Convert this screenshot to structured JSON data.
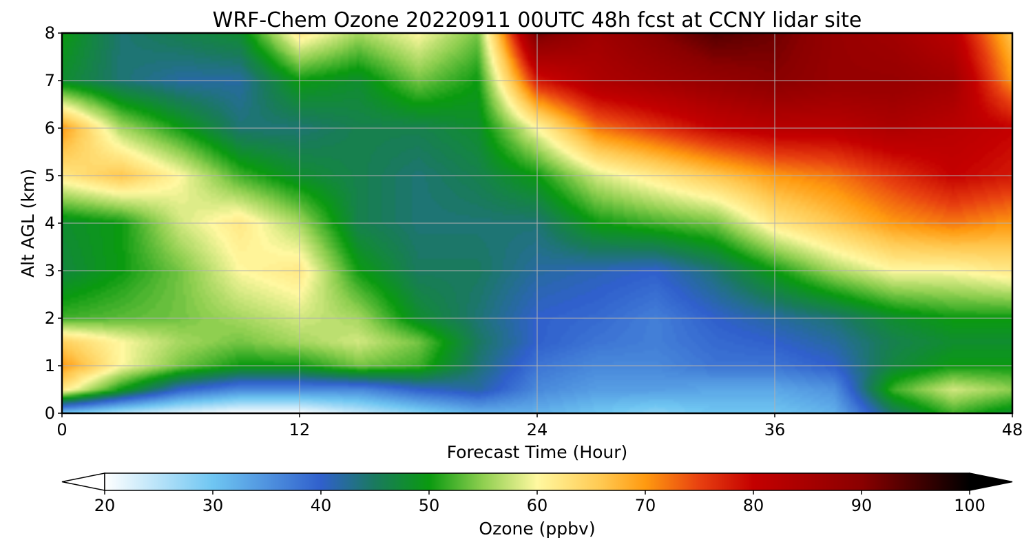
{
  "chart_data": {
    "type": "heatmap",
    "title": "WRF-Chem Ozone  20220911 00UTC 48h fcst at CCNY lidar site",
    "xlabel": "Forecast Time (Hour)",
    "ylabel": "Alt AGL (km)",
    "xlim": [
      0,
      48
    ],
    "ylim": [
      0,
      8
    ],
    "xticks": [
      0,
      12,
      24,
      36,
      48
    ],
    "yticks": [
      0,
      1,
      2,
      3,
      4,
      5,
      6,
      7,
      8
    ],
    "grid": true,
    "colorbar": {
      "label": "Ozone  (ppbv)",
      "orientation": "horizontal",
      "placement": "bottom",
      "range": [
        20,
        100
      ],
      "ticks": [
        20,
        30,
        40,
        50,
        60,
        70,
        80,
        90,
        100
      ],
      "extend": "both",
      "colors": [
        {
          "v": 20,
          "c": "#ffffff"
        },
        {
          "v": 30,
          "c": "#6fc6f2"
        },
        {
          "v": 40,
          "c": "#3060cc"
        },
        {
          "v": 45,
          "c": "#1a7a5e"
        },
        {
          "v": 50,
          "c": "#0a9a10"
        },
        {
          "v": 55,
          "c": "#8fcf50"
        },
        {
          "v": 60,
          "c": "#fff8a0"
        },
        {
          "v": 66,
          "c": "#ffc850"
        },
        {
          "v": 70,
          "c": "#ff9a10"
        },
        {
          "v": 75,
          "c": "#e84010"
        },
        {
          "v": 80,
          "c": "#c40000"
        },
        {
          "v": 90,
          "c": "#8a0000"
        },
        {
          "v": 100,
          "c": "#000000"
        }
      ]
    },
    "x_hours": [
      0,
      3,
      6,
      9,
      12,
      15,
      18,
      21,
      24,
      27,
      30,
      33,
      36,
      39,
      42,
      45,
      48
    ],
    "y_km": [
      0,
      0.5,
      1,
      1.5,
      2,
      3,
      4,
      5,
      6,
      7,
      8
    ],
    "z_ozone_ppbv": [
      [
        30,
        25,
        22,
        20,
        20,
        24,
        28,
        32,
        32,
        30,
        28,
        30,
        30,
        32,
        45,
        52,
        48
      ],
      [
        62,
        50,
        40,
        36,
        36,
        36,
        40,
        42,
        36,
        34,
        34,
        33,
        33,
        35,
        52,
        58,
        55
      ],
      [
        70,
        60,
        54,
        50,
        50,
        54,
        52,
        44,
        38,
        36,
        36,
        38,
        38,
        40,
        47,
        50,
        50
      ],
      [
        65,
        60,
        56,
        54,
        56,
        58,
        54,
        45,
        40,
        38,
        37,
        39,
        40,
        42,
        46,
        48,
        48
      ],
      [
        52,
        53,
        54,
        56,
        58,
        56,
        48,
        44,
        40,
        39,
        37,
        40,
        42,
        44,
        48,
        50,
        50
      ],
      [
        47,
        50,
        54,
        60,
        62,
        50,
        45,
        45,
        42,
        41,
        40,
        44,
        50,
        56,
        60,
        60,
        62
      ],
      [
        48,
        50,
        58,
        62,
        56,
        46,
        44,
        44,
        44,
        50,
        52,
        54,
        62,
        66,
        70,
        72,
        70
      ],
      [
        62,
        66,
        60,
        52,
        48,
        46,
        44,
        46,
        50,
        58,
        62,
        66,
        70,
        72,
        76,
        80,
        78
      ],
      [
        70,
        56,
        50,
        44,
        44,
        46,
        46,
        48,
        60,
        72,
        76,
        80,
        82,
        82,
        84,
        82,
        80
      ],
      [
        48,
        44,
        42,
        42,
        50,
        48,
        54,
        50,
        78,
        84,
        86,
        88,
        90,
        88,
        88,
        86,
        70
      ],
      [
        50,
        44,
        46,
        48,
        62,
        56,
        60,
        54,
        92,
        86,
        90,
        94,
        92,
        88,
        86,
        82,
        66
      ]
    ]
  }
}
